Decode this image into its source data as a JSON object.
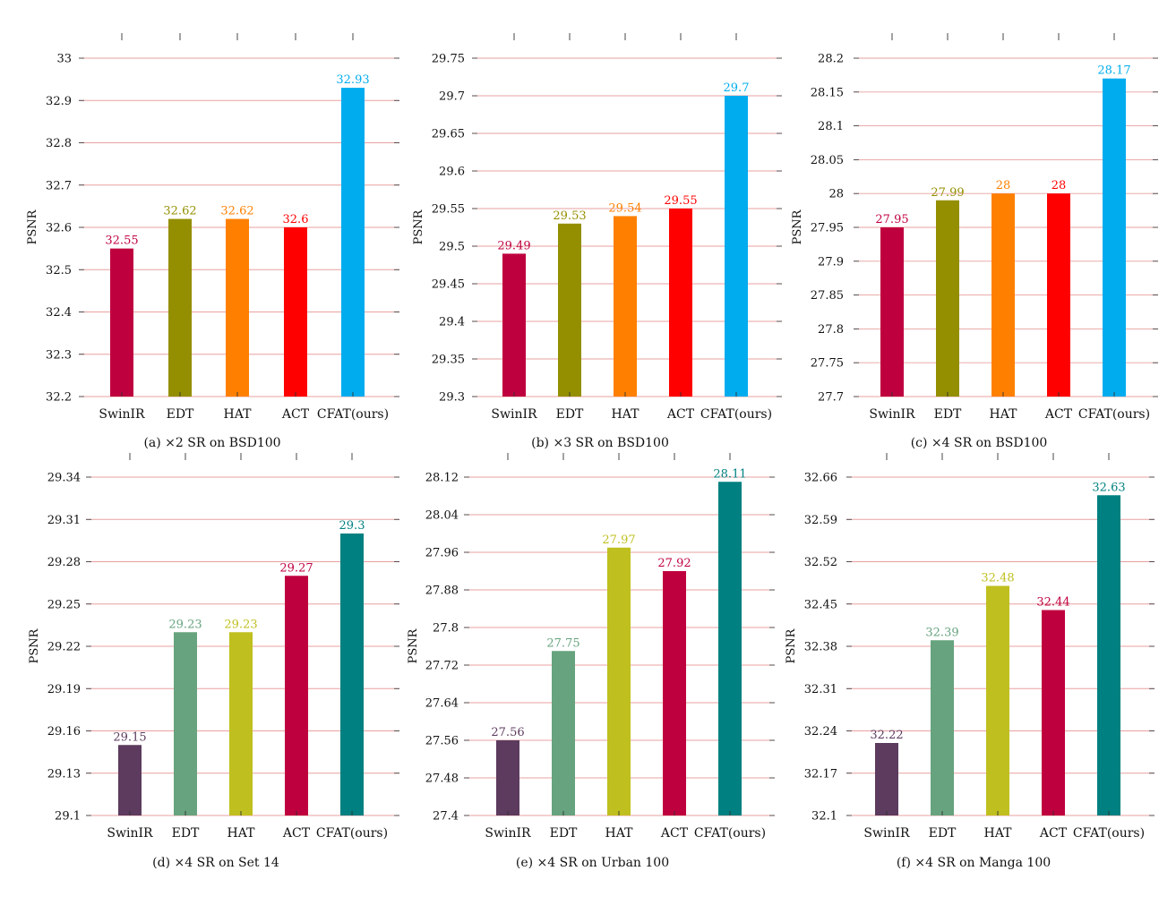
{
  "chart_data": [
    {
      "type": "bar",
      "caption": "(a) ×2 SR on BSD100",
      "ylabel": "PSNR",
      "categories": [
        "SwinIR",
        "EDT",
        "HAT",
        "ACT",
        "CFAT(ours)"
      ],
      "values": [
        32.55,
        32.62,
        32.62,
        32.6,
        32.93
      ],
      "value_labels": [
        "32.55",
        "32.62",
        "32.62",
        "32.6",
        "32.93"
      ],
      "colors": [
        "#bf003f",
        "#948f00",
        "#ff8000",
        "#ff0000",
        "#00acee"
      ],
      "ylim": [
        32.2,
        33.0
      ],
      "yticks": [
        32.2,
        32.3,
        32.4,
        32.5,
        32.6,
        32.7,
        32.8,
        32.9,
        33.0
      ],
      "ytick_labels": [
        "32.2",
        "32.3",
        "32.4",
        "32.5",
        "32.6",
        "32.7",
        "32.8",
        "32.9",
        "33"
      ],
      "grid": true
    },
    {
      "type": "bar",
      "caption": "(b) ×3 SR on BSD100",
      "ylabel": "PSNR",
      "categories": [
        "SwinIR",
        "EDT",
        "HAT",
        "ACT",
        "CFAT(ours)"
      ],
      "values": [
        29.49,
        29.53,
        29.54,
        29.55,
        29.7
      ],
      "value_labels": [
        "29.49",
        "29.53",
        "29.54",
        "29.55",
        "29.7"
      ],
      "colors": [
        "#bf003f",
        "#948f00",
        "#ff8000",
        "#ff0000",
        "#00acee"
      ],
      "ylim": [
        29.3,
        29.75
      ],
      "yticks": [
        29.3,
        29.35,
        29.4,
        29.45,
        29.5,
        29.55,
        29.6,
        29.65,
        29.7,
        29.75
      ],
      "ytick_labels": [
        "29.3",
        "29.35",
        "29.4",
        "29.45",
        "29.5",
        "29.55",
        "29.6",
        "29.65",
        "29.7",
        "29.75"
      ],
      "grid": true
    },
    {
      "type": "bar",
      "caption": "(c) ×4 SR on BSD100",
      "ylabel": "PSNR",
      "categories": [
        "SwinIR",
        "EDT",
        "HAT",
        "ACT",
        "CFAT(ours)"
      ],
      "values": [
        27.95,
        27.99,
        28.0,
        28.0,
        28.17
      ],
      "value_labels": [
        "27.95",
        "27.99",
        "28",
        "28",
        "28.17"
      ],
      "colors": [
        "#bf003f",
        "#948f00",
        "#ff8000",
        "#ff0000",
        "#00acee"
      ],
      "ylim": [
        27.7,
        28.2
      ],
      "yticks": [
        27.7,
        27.75,
        27.8,
        27.85,
        27.9,
        27.95,
        28.0,
        28.05,
        28.1,
        28.15,
        28.2
      ],
      "ytick_labels": [
        "27.7",
        "27.75",
        "27.8",
        "27.85",
        "27.9",
        "27.95",
        "28",
        "28.05",
        "28.1",
        "28.15",
        "28.2"
      ],
      "grid": true
    },
    {
      "type": "bar",
      "caption": "(d) ×4 SR on Set 14",
      "ylabel": "PSNR",
      "categories": [
        "SwinIR",
        "EDT",
        "HAT",
        "ACT",
        "CFAT(ours)"
      ],
      "values": [
        29.15,
        29.23,
        29.23,
        29.27,
        29.3
      ],
      "value_labels": [
        "29.15",
        "29.23",
        "29.23",
        "29.27",
        "29.3"
      ],
      "colors": [
        "#5c3b5e",
        "#66a37e",
        "#bfbf1f",
        "#bf003f",
        "#008080"
      ],
      "ylim": [
        29.1,
        29.34
      ],
      "yticks": [
        29.1,
        29.13,
        29.16,
        29.19,
        29.22,
        29.25,
        29.28,
        29.31,
        29.34
      ],
      "ytick_labels": [
        "29.1",
        "29.13",
        "29.16",
        "29.19",
        "29.22",
        "29.25",
        "29.28",
        "29.31",
        "29.34"
      ],
      "grid": true
    },
    {
      "type": "bar",
      "caption": "(e) ×4 SR on Urban 100",
      "ylabel": "PSNR",
      "categories": [
        "SwinIR",
        "EDT",
        "HAT",
        "ACT",
        "CFAT(ours)"
      ],
      "values": [
        27.56,
        27.75,
        27.97,
        27.92,
        28.11
      ],
      "value_labels": [
        "27.56",
        "27.75",
        "27.97",
        "27.92",
        "28.11"
      ],
      "colors": [
        "#5c3b5e",
        "#66a37e",
        "#bfbf1f",
        "#bf003f",
        "#008080"
      ],
      "ylim": [
        27.4,
        28.12
      ],
      "yticks": [
        27.4,
        27.48,
        27.56,
        27.64,
        27.72,
        27.8,
        27.88,
        27.96,
        28.04,
        28.12
      ],
      "ytick_labels": [
        "27.4",
        "27.48",
        "27.56",
        "27.64",
        "27.72",
        "27.8",
        "27.88",
        "27.96",
        "28.04",
        "28.12"
      ],
      "grid": true
    },
    {
      "type": "bar",
      "caption": "(f) ×4 SR on Manga 100",
      "ylabel": "PSNR",
      "categories": [
        "SwinIR",
        "EDT",
        "HAT",
        "ACT",
        "CFAT(ours)"
      ],
      "values": [
        32.22,
        32.39,
        32.48,
        32.44,
        32.63
      ],
      "value_labels": [
        "32.22",
        "32.39",
        "32.48",
        "32.44",
        "32.63"
      ],
      "colors": [
        "#5c3b5e",
        "#66a37e",
        "#bfbf1f",
        "#bf003f",
        "#008080"
      ],
      "ylim": [
        32.1,
        32.66
      ],
      "yticks": [
        32.1,
        32.17,
        32.24,
        32.31,
        32.38,
        32.45,
        32.52,
        32.59,
        32.66
      ],
      "ytick_labels": [
        "32.1",
        "32.17",
        "32.24",
        "32.31",
        "32.38",
        "32.45",
        "32.52",
        "32.59",
        "32.66"
      ],
      "grid": true
    }
  ]
}
